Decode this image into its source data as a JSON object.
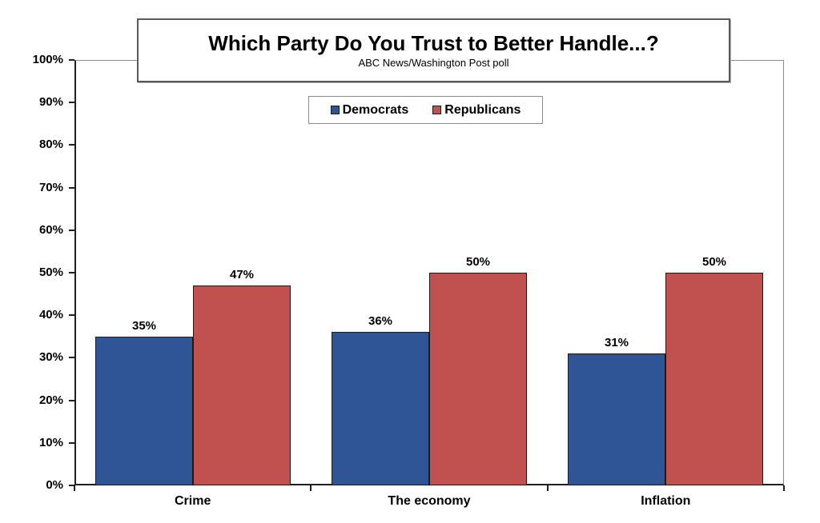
{
  "chart_data": {
    "type": "bar",
    "title": "Which Party Do You Trust to Better Handle...?",
    "subtitle": "ABC News/Washington Post poll",
    "categories": [
      "Crime",
      "The economy",
      "Inflation"
    ],
    "series": [
      {
        "name": "Democrats",
        "color": "#2F5597",
        "values": [
          35,
          36,
          31
        ]
      },
      {
        "name": "Republicans",
        "color": "#C0514F",
        "values": [
          47,
          50,
          50
        ]
      }
    ],
    "ylim": [
      0,
      100
    ],
    "ytick_labels": [
      "0%",
      "10%",
      "20%",
      "30%",
      "40%",
      "50%",
      "60%",
      "70%",
      "80%",
      "90%",
      "100%"
    ],
    "value_suffix": "%",
    "grid": false,
    "legend_position": "top-center"
  }
}
